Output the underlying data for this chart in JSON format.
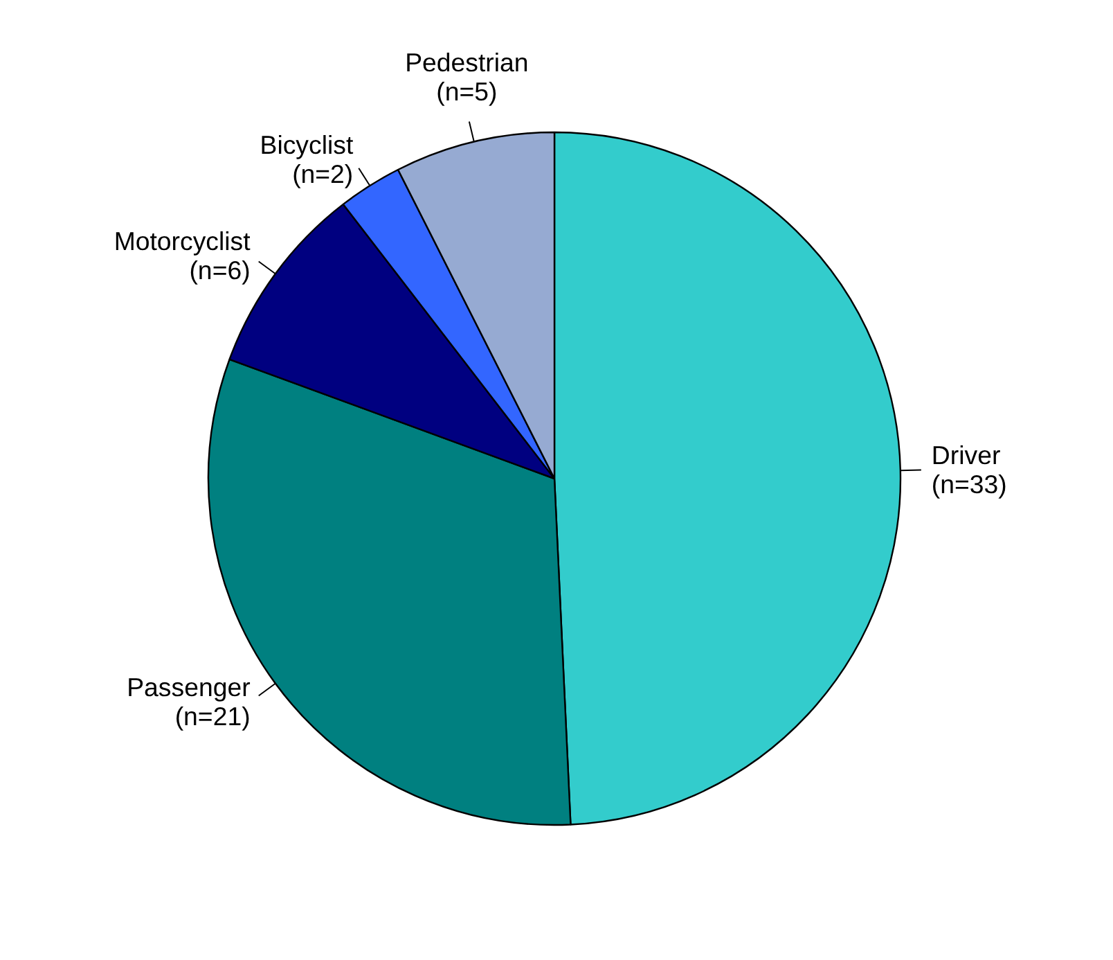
{
  "chart_data": {
    "type": "pie",
    "categories": [
      "Driver",
      "Passenger",
      "Motorcyclist",
      "Bicyclist",
      "Pedestrian"
    ],
    "values": [
      33,
      21,
      6,
      2,
      5
    ],
    "value_labels": [
      "(n=33)",
      "(n=21)",
      "(n=6)",
      "(n=2)",
      "(n=5)"
    ],
    "colors": [
      "#33cccc",
      "#008080",
      "#000080",
      "#3366ff",
      "#96aad2"
    ]
  }
}
